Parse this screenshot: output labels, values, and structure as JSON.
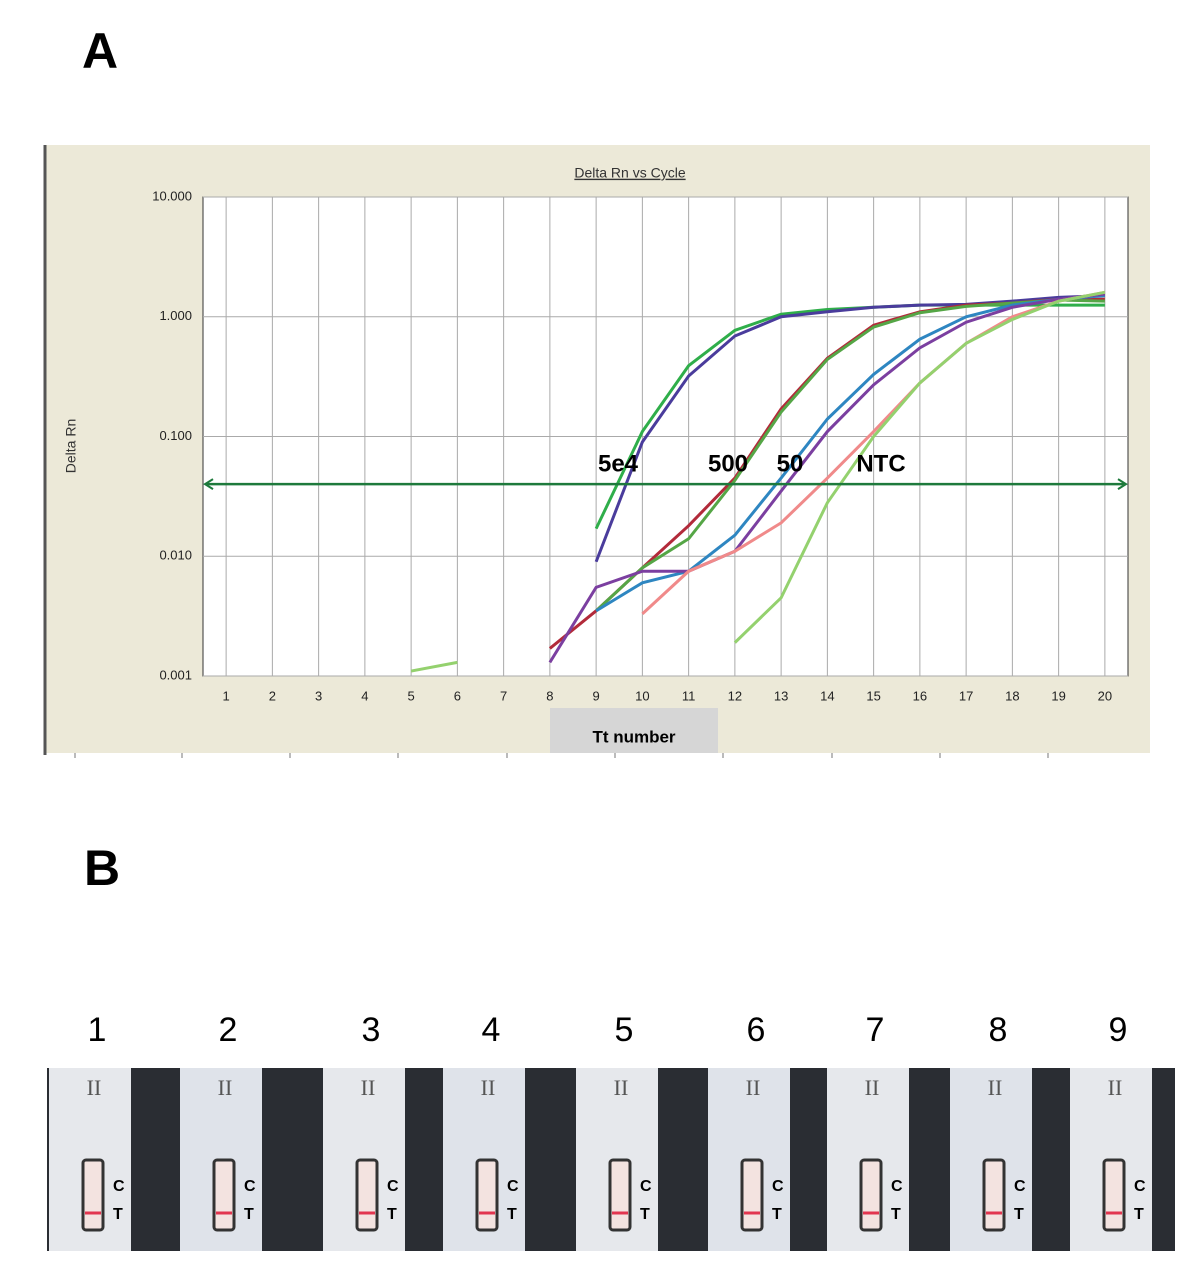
{
  "panel_a_label": "A",
  "panel_b_label": "B",
  "chart_data": {
    "type": "line",
    "title": "Delta Rn vs Cycle",
    "ylabel": "Delta Rn",
    "xlabel": "Tt number",
    "x": [
      1,
      2,
      3,
      4,
      5,
      6,
      7,
      8,
      9,
      10,
      11,
      12,
      13,
      14,
      15,
      16,
      17,
      18,
      19,
      20
    ],
    "xlim": [
      0.5,
      20.5
    ],
    "xticks": [
      1,
      2,
      3,
      4,
      5,
      6,
      7,
      8,
      9,
      10,
      11,
      12,
      13,
      14,
      15,
      16,
      17,
      18,
      19,
      20
    ],
    "ylim": [
      0.001,
      10
    ],
    "log_scale": true,
    "grid": true,
    "yticks": [
      {
        "value": 0.001,
        "label": "0.001"
      },
      {
        "value": 0.01,
        "label": "0.010"
      },
      {
        "value": 0.1,
        "label": "0.100"
      },
      {
        "value": 1,
        "label": "1.000"
      },
      {
        "value": 10,
        "label": "10.000"
      }
    ],
    "threshold": 0.04,
    "threshold_color": "#1e7a3c",
    "annotations": [
      "5e4",
      "500",
      "50",
      "NTC"
    ],
    "series": [
      {
        "color": "#2fae4a",
        "values": [
          null,
          null,
          null,
          null,
          null,
          null,
          null,
          null,
          0.017,
          0.11,
          0.39,
          0.77,
          1.05,
          1.15,
          1.2,
          1.25,
          1.25,
          1.25,
          1.25,
          1.25
        ]
      },
      {
        "color": "#4a3c9c",
        "values": [
          null,
          null,
          null,
          null,
          null,
          null,
          null,
          null,
          0.009,
          0.09,
          0.32,
          0.69,
          1.0,
          1.1,
          1.2,
          1.25,
          1.27,
          1.35,
          1.45,
          1.5
        ]
      },
      {
        "color": "#b22a3a",
        "values": [
          null,
          null,
          null,
          null,
          null,
          null,
          null,
          0.0017,
          0.0035,
          0.008,
          0.018,
          0.045,
          0.17,
          0.45,
          0.85,
          1.1,
          1.25,
          1.3,
          1.4,
          1.4
        ]
      },
      {
        "color": "#55a646",
        "values": [
          null,
          null,
          null,
          null,
          null,
          null,
          null,
          null,
          0.0035,
          0.008,
          0.014,
          0.043,
          0.16,
          0.44,
          0.82,
          1.08,
          1.22,
          1.3,
          1.38,
          1.35
        ]
      },
      {
        "color": "#2e86c1",
        "values": [
          null,
          null,
          null,
          null,
          null,
          null,
          null,
          null,
          0.0035,
          0.006,
          0.0075,
          0.015,
          0.045,
          0.14,
          0.33,
          0.65,
          1.0,
          1.25,
          1.4,
          1.5
        ]
      },
      {
        "color": "#7b3fa0",
        "values": [
          null,
          null,
          null,
          null,
          null,
          null,
          null,
          0.0013,
          0.0055,
          0.0075,
          0.0075,
          0.011,
          0.035,
          0.11,
          0.27,
          0.55,
          0.9,
          1.2,
          1.4,
          1.55
        ]
      },
      {
        "color": "#f08a8a",
        "values": [
          null,
          null,
          null,
          null,
          null,
          null,
          null,
          null,
          null,
          0.0033,
          0.0075,
          0.011,
          0.019,
          0.045,
          0.11,
          0.28,
          0.6,
          1.0,
          1.35,
          1.6
        ]
      },
      {
        "color": "#94d16e",
        "values": [
          null,
          null,
          null,
          null,
          0.0011,
          0.0013,
          null,
          null,
          null,
          null,
          null,
          0.0019,
          0.0045,
          0.028,
          0.1,
          0.28,
          0.6,
          0.95,
          1.35,
          1.6
        ]
      }
    ]
  },
  "strips": [
    {
      "number": "1",
      "mark": "II",
      "c": "C",
      "t": "T"
    },
    {
      "number": "2",
      "mark": "II",
      "c": "C",
      "t": "T"
    },
    {
      "number": "3",
      "mark": "II",
      "c": "C",
      "t": "T"
    },
    {
      "number": "4",
      "mark": "II",
      "c": "C",
      "t": "T"
    },
    {
      "number": "5",
      "mark": "II",
      "c": "C",
      "t": "T"
    },
    {
      "number": "6",
      "mark": "II",
      "c": "C",
      "t": "T"
    },
    {
      "number": "7",
      "mark": "II",
      "c": "C",
      "t": "T"
    },
    {
      "number": "8",
      "mark": "II",
      "c": "C",
      "t": "T"
    },
    {
      "number": "9",
      "mark": "II",
      "c": "C",
      "t": "T"
    }
  ]
}
